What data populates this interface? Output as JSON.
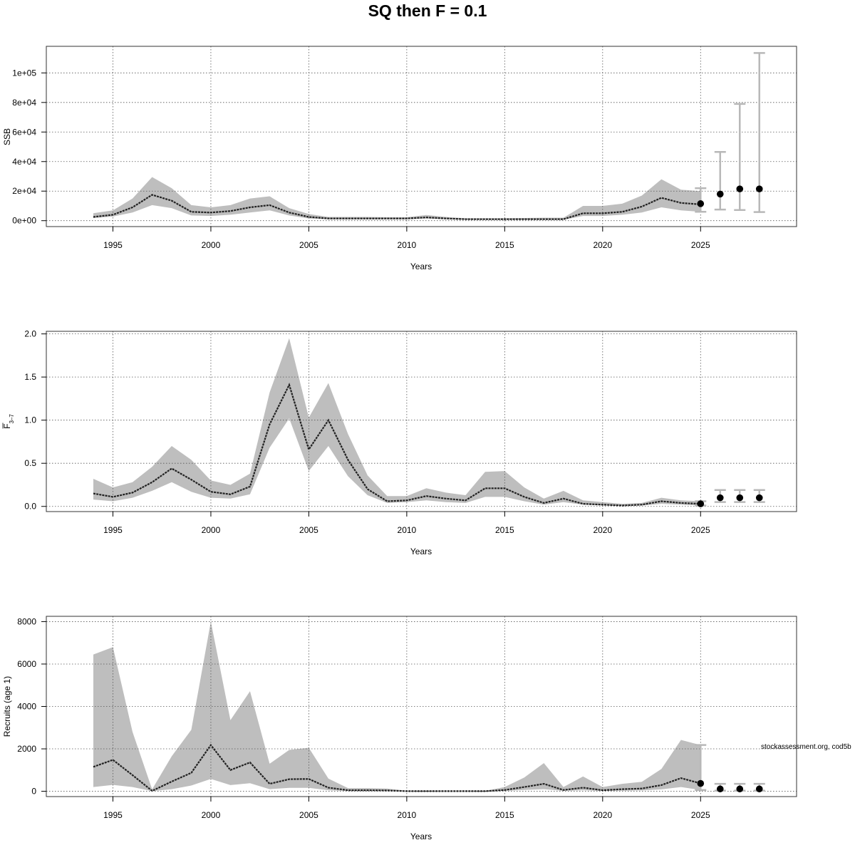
{
  "title": "SQ then F = 0.1",
  "annotation": "stockassessment.org, cod5b",
  "colors": {
    "band": "#bebebe",
    "line": "#222222",
    "grid": "#555555",
    "frame": "#333333",
    "point": "#000000",
    "errorbar": "#b8b8b8"
  },
  "chart_data": [
    {
      "type": "line",
      "xlabel": "Years",
      "ylabel": "SSB",
      "xlim": [
        1991.6,
        2029.9
      ],
      "ylim": [
        -4000,
        118000
      ],
      "xticks": [
        1995,
        2000,
        2005,
        2010,
        2015,
        2020,
        2025
      ],
      "xtick_labels": [
        "1995",
        "2000",
        "2005",
        "2010",
        "2015",
        "2020",
        "2025"
      ],
      "yticks": [
        0,
        20000,
        40000,
        60000,
        80000,
        100000
      ],
      "ytick_labels": [
        "0e+00",
        "2e+04",
        "4e+04",
        "6e+04",
        "8e+04",
        "1e+05"
      ],
      "grid": true,
      "years": [
        1994,
        1995,
        1996,
        1997,
        1998,
        1999,
        2000,
        2001,
        2002,
        2003,
        2004,
        2005,
        2006,
        2007,
        2008,
        2009,
        2010,
        2011,
        2012,
        2013,
        2014,
        2015,
        2016,
        2017,
        2018,
        2019,
        2020,
        2021,
        2022,
        2023,
        2024,
        2025
      ],
      "estimate": [
        2500,
        4000,
        9000,
        17500,
        13500,
        6000,
        5500,
        6500,
        9000,
        10500,
        5500,
        2500,
        1500,
        1500,
        1500,
        1500,
        1500,
        2200,
        1500,
        1000,
        1000,
        1000,
        1000,
        1000,
        1000,
        5000,
        5000,
        6000,
        9500,
        15500,
        12000,
        11000
      ],
      "lower": [
        1800,
        2800,
        5500,
        10500,
        8500,
        3500,
        3200,
        4000,
        5500,
        7000,
        3500,
        1500,
        900,
        900,
        900,
        900,
        900,
        1400,
        900,
        600,
        600,
        600,
        600,
        600,
        600,
        3200,
        3200,
        4000,
        5500,
        9000,
        7000,
        6000
      ],
      "upper": [
        5000,
        7000,
        15000,
        29500,
        22000,
        10500,
        9000,
        10500,
        15000,
        16500,
        8500,
        4500,
        2500,
        2500,
        2500,
        2300,
        2300,
        3800,
        2500,
        1600,
        1600,
        1600,
        1800,
        2000,
        2000,
        10000,
        10000,
        11500,
        17000,
        28000,
        21000,
        20000
      ],
      "forecast": {
        "years": [
          2025,
          2026,
          2027,
          2028
        ],
        "median": [
          11500,
          18000,
          21500,
          21500
        ],
        "lower": [
          6000,
          7500,
          7200,
          5800
        ],
        "upper": [
          22000,
          46500,
          79000,
          113500
        ]
      }
    },
    {
      "type": "line",
      "xlabel": "Years",
      "ylabel": "F",
      "ylabel_sub": "3–7",
      "xlim": [
        1991.6,
        2029.9
      ],
      "ylim": [
        -0.06,
        2.03
      ],
      "xticks": [
        1995,
        2000,
        2005,
        2010,
        2015,
        2020,
        2025
      ],
      "xtick_labels": [
        "1995",
        "2000",
        "2005",
        "2010",
        "2015",
        "2020",
        "2025"
      ],
      "yticks": [
        0,
        0.5,
        1.0,
        1.5,
        2.0
      ],
      "ytick_labels": [
        "0.0",
        "0.5",
        "1.0",
        "1.5",
        "2.0"
      ],
      "grid": true,
      "years": [
        1994,
        1995,
        1996,
        1997,
        1998,
        1999,
        2000,
        2001,
        2002,
        2003,
        2004,
        2005,
        2006,
        2007,
        2008,
        2009,
        2010,
        2011,
        2012,
        2013,
        2014,
        2015,
        2016,
        2017,
        2018,
        2019,
        2020,
        2021,
        2022,
        2023,
        2024,
        2025
      ],
      "estimate": [
        0.15,
        0.11,
        0.16,
        0.28,
        0.44,
        0.31,
        0.17,
        0.14,
        0.23,
        0.95,
        1.41,
        0.66,
        1.0,
        0.54,
        0.2,
        0.06,
        0.07,
        0.12,
        0.09,
        0.07,
        0.21,
        0.21,
        0.11,
        0.04,
        0.09,
        0.03,
        0.02,
        0.01,
        0.02,
        0.06,
        0.04,
        0.03
      ],
      "lower": [
        0.08,
        0.06,
        0.1,
        0.18,
        0.28,
        0.17,
        0.1,
        0.09,
        0.14,
        0.68,
        1.02,
        0.41,
        0.7,
        0.35,
        0.13,
        0.04,
        0.05,
        0.07,
        0.05,
        0.04,
        0.11,
        0.11,
        0.06,
        0.02,
        0.05,
        0.02,
        0.01,
        0.005,
        0.01,
        0.03,
        0.02,
        0.01
      ],
      "upper": [
        0.32,
        0.22,
        0.28,
        0.46,
        0.7,
        0.54,
        0.3,
        0.25,
        0.38,
        1.32,
        1.95,
        1.03,
        1.43,
        0.84,
        0.36,
        0.12,
        0.12,
        0.21,
        0.16,
        0.13,
        0.4,
        0.41,
        0.22,
        0.09,
        0.18,
        0.07,
        0.05,
        0.03,
        0.04,
        0.1,
        0.07,
        0.06
      ],
      "forecast": {
        "years": [
          2025,
          2026,
          2027,
          2028
        ],
        "median": [
          0.03,
          0.1,
          0.1,
          0.1
        ],
        "lower": [
          0.01,
          0.05,
          0.05,
          0.05
        ],
        "upper": [
          0.06,
          0.19,
          0.19,
          0.19
        ]
      }
    },
    {
      "type": "line",
      "xlabel": "Years",
      "ylabel": "Recruits (age 1)",
      "xlim": [
        1991.6,
        2029.9
      ],
      "ylim": [
        -250,
        8250
      ],
      "xticks": [
        1995,
        2000,
        2005,
        2010,
        2015,
        2020,
        2025
      ],
      "xtick_labels": [
        "1995",
        "2000",
        "2005",
        "2010",
        "2015",
        "2020",
        "2025"
      ],
      "yticks": [
        0,
        2000,
        4000,
        6000,
        8000
      ],
      "ytick_labels": [
        "0",
        "2000",
        "4000",
        "6000",
        "8000"
      ],
      "grid": true,
      "years": [
        1994,
        1995,
        1996,
        1997,
        1998,
        1999,
        2000,
        2001,
        2002,
        2003,
        2004,
        2005,
        2006,
        2007,
        2008,
        2009,
        2010,
        2011,
        2012,
        2013,
        2014,
        2015,
        2016,
        2017,
        2018,
        2019,
        2020,
        2021,
        2022,
        2023,
        2024,
        2025
      ],
      "estimate": [
        1150,
        1480,
        760,
        20,
        460,
        870,
        2180,
        1000,
        1360,
        350,
        570,
        580,
        170,
        50,
        50,
        40,
        5,
        5,
        5,
        5,
        5,
        60,
        200,
        350,
        60,
        170,
        50,
        100,
        130,
        290,
        620,
        370
      ],
      "lower": [
        200,
        300,
        200,
        5,
        100,
        270,
        580,
        290,
        380,
        100,
        160,
        160,
        50,
        10,
        10,
        10,
        1,
        1,
        1,
        1,
        1,
        20,
        60,
        100,
        20,
        50,
        15,
        30,
        40,
        90,
        200,
        60
      ],
      "upper": [
        6450,
        6800,
        2800,
        90,
        1650,
        2900,
        8000,
        3350,
        4720,
        1300,
        1950,
        2050,
        600,
        150,
        150,
        130,
        20,
        20,
        20,
        20,
        20,
        200,
        650,
        1330,
        200,
        700,
        200,
        350,
        450,
        1050,
        2420,
        2180
      ],
      "forecast": {
        "years": [
          2025,
          2026,
          2027,
          2028
        ],
        "median": [
          370,
          110,
          110,
          110
        ],
        "lower": [
          60,
          30,
          30,
          30
        ],
        "upper": [
          2180,
          350,
          350,
          350
        ]
      }
    }
  ]
}
